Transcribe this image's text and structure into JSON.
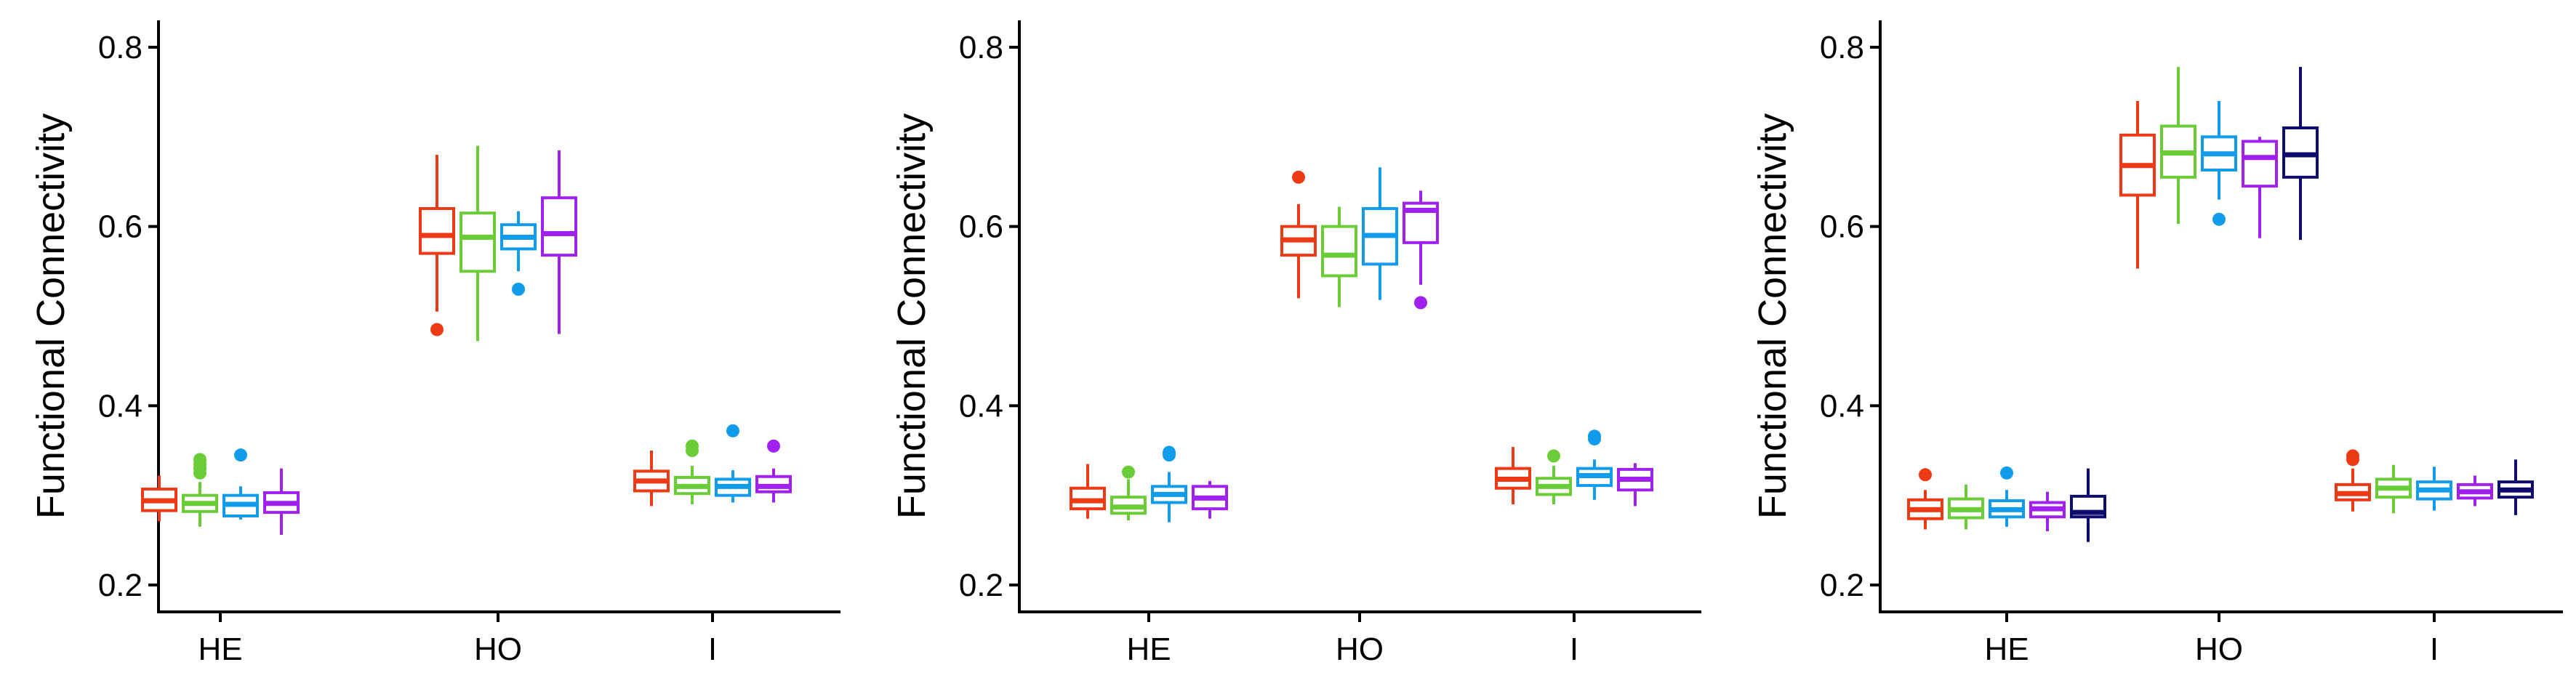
{
  "chart_data": [
    {
      "type": "box",
      "ylabel": "Functional Connectivity",
      "categories": [
        "HE",
        "HO",
        "I"
      ],
      "ylim": [
        0.17,
        0.83
      ],
      "yticks": [
        "0.2",
        "0.4",
        "0.6",
        "0.8"
      ],
      "ytick_values": [
        0.2,
        0.4,
        0.6,
        0.8
      ],
      "grid": false,
      "legend": "none",
      "series_colors": [
        "#EE3A14",
        "#6ACD37",
        "#109BEB",
        "#A020F0"
      ],
      "boxes": {
        "HE": [
          {
            "min": 0.271,
            "q1": 0.283,
            "median": 0.294,
            "q3": 0.307,
            "max": 0.322,
            "outliers": []
          },
          {
            "min": 0.265,
            "q1": 0.282,
            "median": 0.291,
            "q3": 0.3,
            "max": 0.315,
            "outliers": [
              0.325,
              0.33,
              0.335,
              0.34
            ]
          },
          {
            "min": 0.273,
            "q1": 0.277,
            "median": 0.29,
            "q3": 0.3,
            "max": 0.31,
            "outliers": [
              0.345
            ]
          },
          {
            "min": 0.256,
            "q1": 0.281,
            "median": 0.291,
            "q3": 0.303,
            "max": 0.33,
            "outliers": []
          }
        ],
        "HO": [
          {
            "min": 0.505,
            "q1": 0.57,
            "median": 0.59,
            "q3": 0.62,
            "max": 0.68,
            "outliers": [
              0.485
            ]
          },
          {
            "min": 0.472,
            "q1": 0.55,
            "median": 0.588,
            "q3": 0.615,
            "max": 0.69,
            "outliers": []
          },
          {
            "min": 0.55,
            "q1": 0.575,
            "median": 0.588,
            "q3": 0.602,
            "max": 0.617,
            "outliers": [
              0.53
            ]
          },
          {
            "min": 0.48,
            "q1": 0.568,
            "median": 0.592,
            "q3": 0.632,
            "max": 0.685,
            "outliers": []
          }
        ],
        "I": [
          {
            "min": 0.288,
            "q1": 0.305,
            "median": 0.316,
            "q3": 0.327,
            "max": 0.35,
            "outliers": []
          },
          {
            "min": 0.29,
            "q1": 0.302,
            "median": 0.31,
            "q3": 0.32,
            "max": 0.333,
            "outliers": [
              0.35,
              0.355
            ]
          },
          {
            "min": 0.292,
            "q1": 0.3,
            "median": 0.31,
            "q3": 0.318,
            "max": 0.328,
            "outliers": [
              0.372
            ]
          },
          {
            "min": 0.292,
            "q1": 0.304,
            "median": 0.31,
            "q3": 0.321,
            "max": 0.33,
            "outliers": [
              0.355
            ]
          }
        ]
      }
    },
    {
      "type": "box",
      "ylabel": "Functional Connectivity",
      "categories": [
        "HE",
        "HO",
        "I"
      ],
      "ylim": [
        0.17,
        0.83
      ],
      "yticks": [
        "0.2",
        "0.4",
        "0.6",
        "0.8"
      ],
      "ytick_values": [
        0.2,
        0.4,
        0.6,
        0.8
      ],
      "grid": false,
      "legend": "none",
      "series_colors": [
        "#EE3A14",
        "#6ACD37",
        "#109BEB",
        "#A020F0"
      ],
      "boxes": {
        "HE": [
          {
            "min": 0.274,
            "q1": 0.285,
            "median": 0.294,
            "q3": 0.308,
            "max": 0.335,
            "outliers": []
          },
          {
            "min": 0.272,
            "q1": 0.28,
            "median": 0.287,
            "q3": 0.298,
            "max": 0.318,
            "outliers": [
              0.326
            ]
          },
          {
            "min": 0.27,
            "q1": 0.292,
            "median": 0.301,
            "q3": 0.31,
            "max": 0.326,
            "outliers": [
              0.345,
              0.348
            ]
          },
          {
            "min": 0.274,
            "q1": 0.285,
            "median": 0.297,
            "q3": 0.31,
            "max": 0.316,
            "outliers": []
          }
        ],
        "HO": [
          {
            "min": 0.52,
            "q1": 0.568,
            "median": 0.585,
            "q3": 0.6,
            "max": 0.625,
            "outliers": [
              0.655
            ]
          },
          {
            "min": 0.51,
            "q1": 0.545,
            "median": 0.568,
            "q3": 0.6,
            "max": 0.622,
            "outliers": []
          },
          {
            "min": 0.518,
            "q1": 0.558,
            "median": 0.59,
            "q3": 0.62,
            "max": 0.666,
            "outliers": []
          },
          {
            "min": 0.535,
            "q1": 0.582,
            "median": 0.618,
            "q3": 0.626,
            "max": 0.64,
            "outliers": [
              0.515
            ]
          }
        ],
        "I": [
          {
            "min": 0.29,
            "q1": 0.308,
            "median": 0.318,
            "q3": 0.33,
            "max": 0.354,
            "outliers": []
          },
          {
            "min": 0.29,
            "q1": 0.301,
            "median": 0.31,
            "q3": 0.319,
            "max": 0.333,
            "outliers": [
              0.344
            ]
          },
          {
            "min": 0.295,
            "q1": 0.311,
            "median": 0.322,
            "q3": 0.33,
            "max": 0.34,
            "outliers": [
              0.363,
              0.366
            ]
          },
          {
            "min": 0.288,
            "q1": 0.306,
            "median": 0.318,
            "q3": 0.329,
            "max": 0.336,
            "outliers": []
          }
        ]
      }
    },
    {
      "type": "box",
      "ylabel": "Functional Connectivity",
      "categories": [
        "HE",
        "HO",
        "I"
      ],
      "ylim": [
        0.17,
        0.83
      ],
      "yticks": [
        "0.2",
        "0.4",
        "0.6",
        "0.8"
      ],
      "ytick_values": [
        0.2,
        0.4,
        0.6,
        0.8
      ],
      "grid": false,
      "legend": "none",
      "series_colors": [
        "#EE3A14",
        "#6ACD37",
        "#109BEB",
        "#A020F0",
        "#0D0B6E"
      ],
      "boxes": {
        "HE": [
          {
            "min": 0.262,
            "q1": 0.274,
            "median": 0.284,
            "q3": 0.295,
            "max": 0.306,
            "outliers": [
              0.323
            ]
          },
          {
            "min": 0.262,
            "q1": 0.275,
            "median": 0.284,
            "q3": 0.296,
            "max": 0.312,
            "outliers": []
          },
          {
            "min": 0.265,
            "q1": 0.276,
            "median": 0.284,
            "q3": 0.294,
            "max": 0.306,
            "outliers": [
              0.325
            ]
          },
          {
            "min": 0.26,
            "q1": 0.276,
            "median": 0.285,
            "q3": 0.292,
            "max": 0.304,
            "outliers": []
          },
          {
            "min": 0.248,
            "q1": 0.276,
            "median": 0.281,
            "q3": 0.299,
            "max": 0.33,
            "outliers": []
          }
        ],
        "HO": [
          {
            "min": 0.553,
            "q1": 0.635,
            "median": 0.668,
            "q3": 0.702,
            "max": 0.74,
            "outliers": []
          },
          {
            "min": 0.603,
            "q1": 0.655,
            "median": 0.682,
            "q3": 0.712,
            "max": 0.778,
            "outliers": []
          },
          {
            "min": 0.63,
            "q1": 0.663,
            "median": 0.681,
            "q3": 0.7,
            "max": 0.74,
            "outliers": [
              0.608
            ]
          },
          {
            "min": 0.587,
            "q1": 0.645,
            "median": 0.677,
            "q3": 0.695,
            "max": 0.7,
            "outliers": []
          },
          {
            "min": 0.585,
            "q1": 0.655,
            "median": 0.68,
            "q3": 0.71,
            "max": 0.778,
            "outliers": []
          }
        ],
        "I": [
          {
            "min": 0.282,
            "q1": 0.295,
            "median": 0.302,
            "q3": 0.312,
            "max": 0.33,
            "outliers": [
              0.34,
              0.344
            ]
          },
          {
            "min": 0.28,
            "q1": 0.298,
            "median": 0.308,
            "q3": 0.318,
            "max": 0.334,
            "outliers": []
          },
          {
            "min": 0.283,
            "q1": 0.296,
            "median": 0.306,
            "q3": 0.315,
            "max": 0.332,
            "outliers": []
          },
          {
            "min": 0.288,
            "q1": 0.297,
            "median": 0.304,
            "q3": 0.312,
            "max": 0.322,
            "outliers": []
          },
          {
            "min": 0.278,
            "q1": 0.298,
            "median": 0.306,
            "q3": 0.315,
            "max": 0.34,
            "outliers": []
          }
        ]
      }
    }
  ]
}
